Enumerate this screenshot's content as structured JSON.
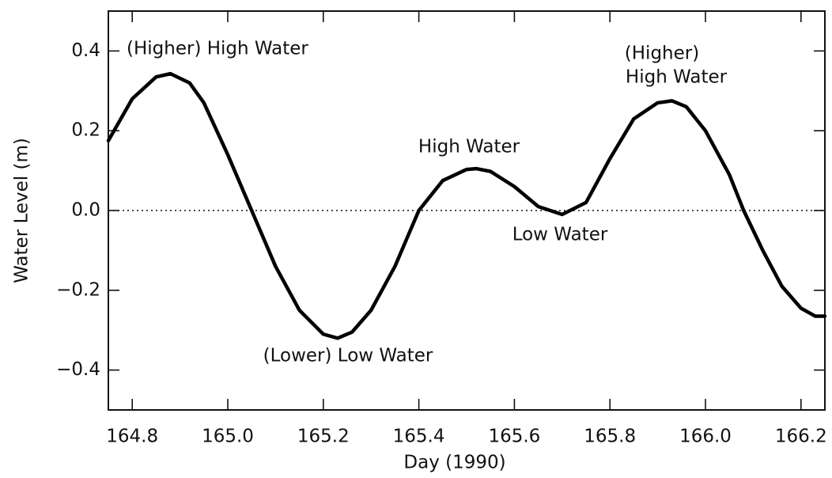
{
  "chart_data": {
    "type": "line",
    "xlabel": "Day (1990)",
    "ylabel": "Water Level (m)",
    "xlim": [
      164.75,
      166.25
    ],
    "ylim": [
      -0.5,
      0.5
    ],
    "xticks": [
      164.8,
      {
        "value": 165.0,
        "label": "165.0"
      },
      165.2,
      165.4,
      165.6,
      165.8,
      {
        "value": 166.0,
        "label": "166.0"
      },
      166.2
    ],
    "yticks": [
      {
        "value": -0.4,
        "label": "−0.4"
      },
      {
        "value": -0.2,
        "label": "−0.2"
      },
      {
        "value": 0.0,
        "label": "0.0"
      },
      0.2,
      0.4
    ],
    "zero_line": true,
    "series": [
      {
        "color": "#000000",
        "x": [
          164.75,
          164.8,
          164.85,
          164.88,
          164.92,
          164.95,
          165.0,
          165.05,
          165.1,
          165.15,
          165.2,
          165.23,
          165.26,
          165.3,
          165.35,
          165.4,
          165.45,
          165.5,
          165.52,
          165.55,
          165.6,
          165.65,
          165.7,
          165.75,
          165.8,
          165.85,
          165.9,
          165.93,
          165.96,
          166.0,
          166.05,
          166.08,
          166.12,
          166.16,
          166.2,
          166.23,
          166.25
        ],
        "values": [
          0.175,
          0.28,
          0.335,
          0.343,
          0.32,
          0.27,
          0.14,
          0.0,
          -0.14,
          -0.25,
          -0.31,
          -0.32,
          -0.305,
          -0.25,
          -0.14,
          0.0,
          0.075,
          0.103,
          0.105,
          0.098,
          0.06,
          0.01,
          -0.01,
          0.02,
          0.13,
          0.23,
          0.27,
          0.275,
          0.26,
          0.2,
          0.09,
          0.0,
          -0.1,
          -0.19,
          -0.245,
          -0.265,
          -0.265
        ]
      }
    ],
    "annotations": [
      "(Higher) High Water",
      "High Water",
      "Low Water",
      "(Lower) Low Water",
      "(Higher)",
      "High Water"
    ]
  }
}
